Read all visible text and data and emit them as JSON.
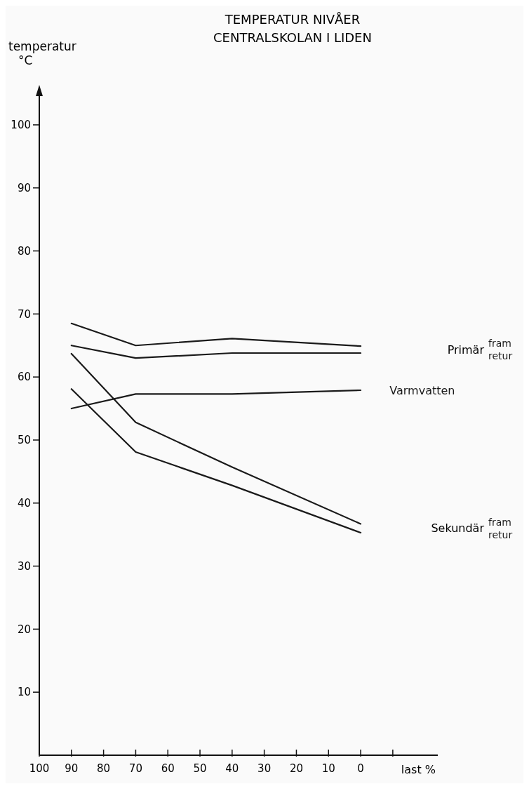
{
  "chart_data": {
    "type": "line",
    "title": "TEMPERATUR NIVÅER",
    "subtitle": "CENTRALSKOLAN I LIDEN",
    "xlabel": "last %",
    "ylabel": "temperatur\n°C",
    "x": [
      90,
      70,
      40,
      0
    ],
    "series": [
      {
        "name": "fram",
        "color": "#1a1a1a",
        "values": [
          68.5,
          65.0,
          66.1,
          64.9
        ]
      },
      {
        "name": "retur",
        "color": "#1a1a1a",
        "values": [
          65.0,
          63.0,
          63.8,
          63.8
        ]
      },
      {
        "name": "Varmvatten",
        "color": "#1a1a1a",
        "values": [
          55.0,
          57.3,
          57.3,
          57.9
        ]
      },
      {
        "name": "fram",
        "color": "#1a1a1a",
        "values": [
          63.7,
          52.8,
          45.7,
          36.7
        ]
      },
      {
        "name": "retur",
        "color": "#1a1a1a",
        "values": [
          58.1,
          48.1,
          42.8,
          35.3
        ]
      }
    ],
    "annotations": [
      "Primär",
      "Sekundär"
    ],
    "xlim": [
      100,
      -24
    ],
    "ylim": [
      0,
      105
    ],
    "xticks": [
      100,
      90,
      80,
      70,
      60,
      50,
      40,
      30,
      20,
      10,
      0,
      {
        "value": -10,
        "label": null
      }
    ],
    "yticks": [
      10,
      20,
      30,
      40,
      50,
      60,
      70,
      80,
      90,
      100
    ],
    "grid": false,
    "marker": "none",
    "line_style": "solid"
  }
}
